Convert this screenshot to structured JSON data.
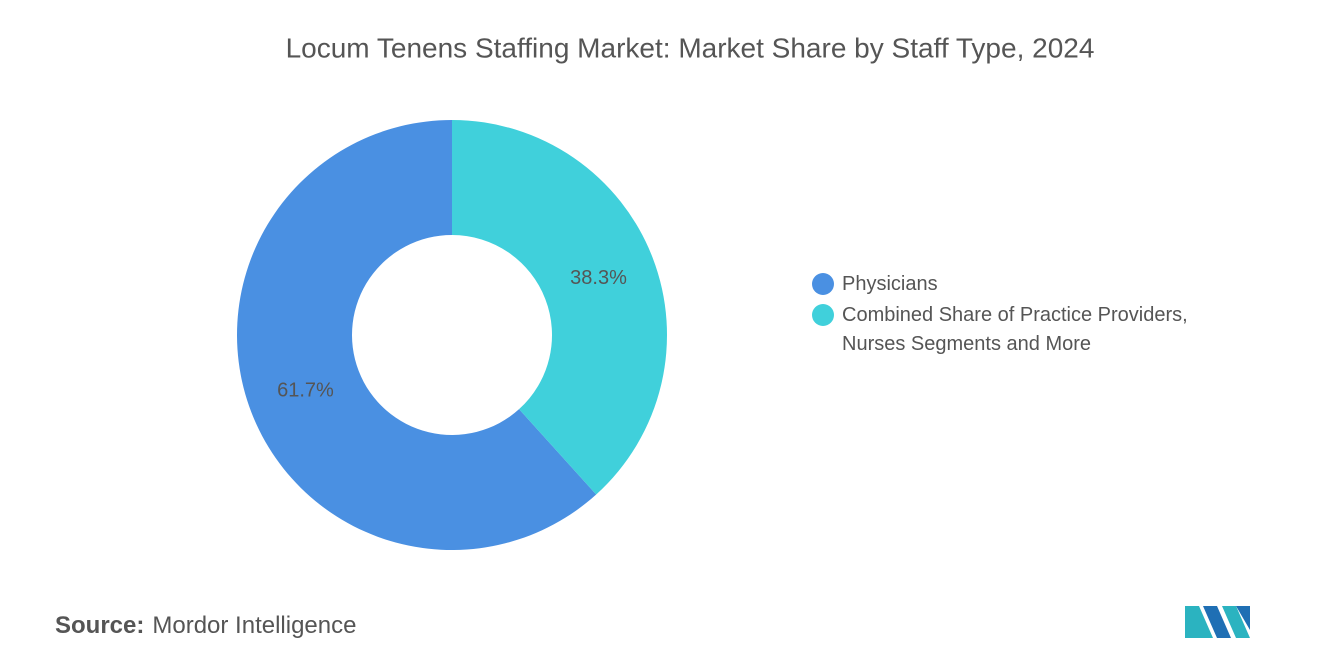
{
  "chart_data": {
    "type": "pie",
    "title": "Locum Tenens Staffing Market: Market Share by Staff Type, 2024",
    "categories": [
      "Physicians",
      "Combined Share of Practice Providers, Nurses Segments and More"
    ],
    "values": [
      61.7,
      38.3
    ],
    "value_labels": [
      "61.7%",
      "38.3%"
    ],
    "colors": [
      "#4a90e2",
      "#40d0db"
    ],
    "legend": "right"
  },
  "source": {
    "label": "Source:",
    "text": "Mordor Intelligence"
  }
}
